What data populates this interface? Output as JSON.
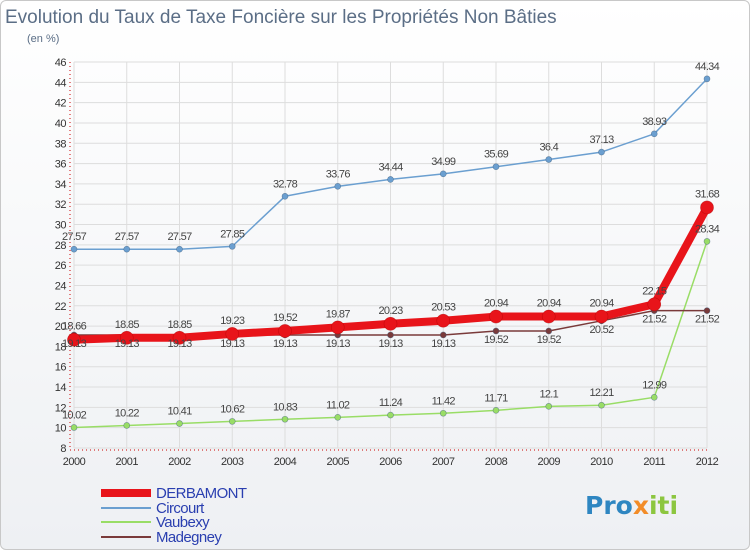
{
  "title": "Evolution du Taux de Taxe Foncière sur les Propriétés Non Bâties",
  "subtitle": "(en %)",
  "logo": {
    "p1": "Pro",
    "p2": "x",
    "p3": "iti"
  },
  "colors": {
    "DERBAMONT": "#e8141a",
    "Circourt": "#6b9fd0",
    "Vaubexy": "#99dd66",
    "Madegney": "#7a3a3a",
    "grid": "#dddddd",
    "axis": "#cc0000"
  },
  "chart_data": {
    "type": "line",
    "title": "Evolution du Taux de Taxe Foncière sur les Propriétés Non Bâties",
    "ylabel": "(en %)",
    "xlabel": "",
    "ylim": [
      8,
      46
    ],
    "yticks": [
      8,
      10,
      12,
      14,
      16,
      18,
      20,
      22,
      24,
      26,
      28,
      30,
      32,
      34,
      36,
      38,
      40,
      42,
      44,
      46
    ],
    "categories": [
      "2000",
      "2001",
      "2002",
      "2003",
      "2004",
      "2005",
      "2006",
      "2007",
      "2008",
      "2009",
      "2010",
      "2011",
      "2012"
    ],
    "legend_position": "bottom-left",
    "series": [
      {
        "name": "DERBAMONT",
        "values": [
          18.66,
          18.85,
          18.85,
          19.23,
          19.52,
          19.87,
          20.23,
          20.53,
          20.94,
          20.94,
          20.94,
          22.15,
          31.68
        ],
        "labels": [
          "18.66",
          "18.85",
          "18.85",
          "19.23",
          "19.52",
          "19.87",
          "20.23",
          "20.53",
          "20.94",
          "20.94",
          "20.94",
          "22.15",
          "31.68"
        ],
        "show_labels": true
      },
      {
        "name": "Circourt",
        "values": [
          27.57,
          27.57,
          27.57,
          27.85,
          32.78,
          33.76,
          34.44,
          34.99,
          35.69,
          36.4,
          37.13,
          38.93,
          44.34
        ],
        "labels": [
          "27.57",
          "27.57",
          "27.57",
          "27.85",
          "32.78",
          "33.76",
          "34.44",
          "34.99",
          "35.69",
          "36.4",
          "37.13",
          "38.93",
          "44.34"
        ],
        "show_labels": true
      },
      {
        "name": "Vaubexy",
        "values": [
          10.02,
          10.22,
          10.41,
          10.62,
          10.83,
          11.02,
          11.24,
          11.42,
          11.71,
          12.1,
          12.21,
          12.99,
          28.34
        ],
        "labels": [
          "10.02",
          "10.22",
          "10.41",
          "10.62",
          "10.83",
          "11.02",
          "11.24",
          "11.42",
          "11.71",
          "12.1",
          "12.21",
          "12.99",
          "28.34"
        ],
        "show_labels": true
      },
      {
        "name": "Madegney",
        "values": [
          19.13,
          19.13,
          19.13,
          19.13,
          19.13,
          19.13,
          19.13,
          19.13,
          19.52,
          19.52,
          20.52,
          21.52,
          21.52
        ],
        "labels": [
          "19.13",
          "19.13",
          "19.13",
          "19.13",
          "19.13",
          "19.13",
          "19.13",
          "19.13",
          "19.52",
          "19.52",
          "20.52",
          "21.52",
          "21.52"
        ],
        "show_labels": true
      }
    ]
  }
}
